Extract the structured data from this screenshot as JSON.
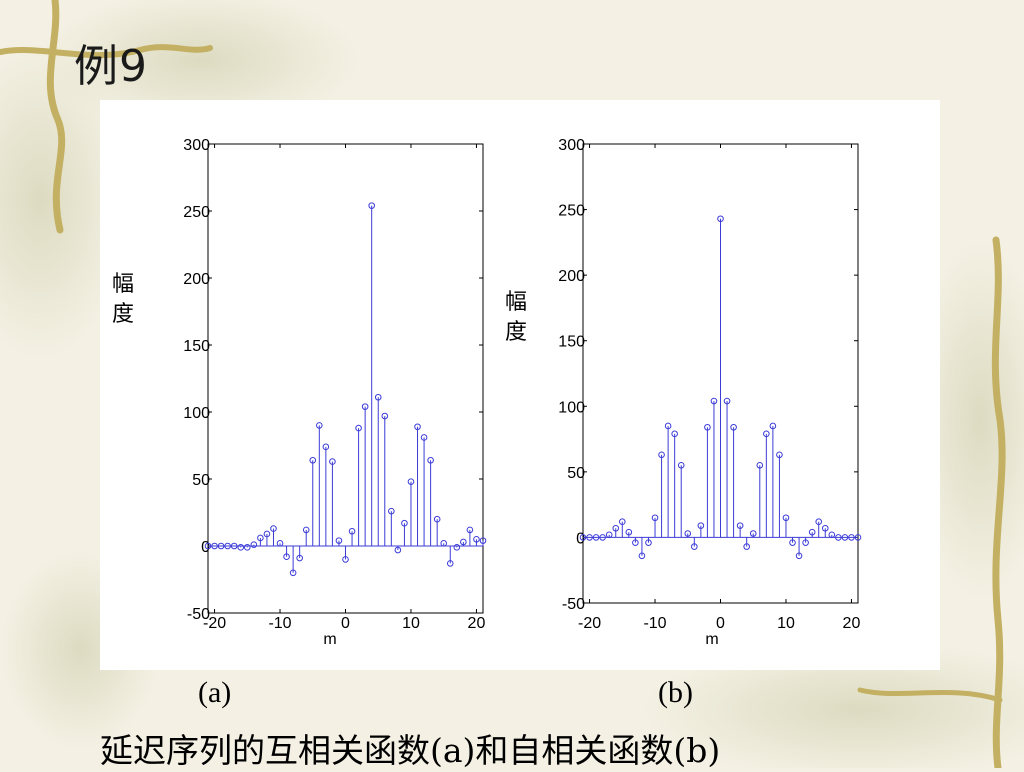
{
  "slide": {
    "title": "例9",
    "label_a": "(a)",
    "label_b": "(b)",
    "caption": "延迟序列的互相关函数(a)和自相关函数(b)"
  },
  "chart_data": [
    {
      "type": "stem",
      "ylabel": "幅度",
      "xlabel": "m",
      "xlim": [
        -21,
        21
      ],
      "ylim": [
        -50,
        300
      ],
      "xticks": [
        -20,
        -10,
        0,
        10,
        20
      ],
      "yticks": [
        -50,
        0,
        50,
        100,
        150,
        200,
        250,
        300
      ],
      "color": "#3b3bd8",
      "x": [
        -21,
        -20,
        -19,
        -18,
        -17,
        -16,
        -15,
        -14,
        -13,
        -12,
        -11,
        -10,
        -9,
        -8,
        -7,
        -6,
        -5,
        -4,
        -3,
        -2,
        -1,
        0,
        1,
        2,
        3,
        4,
        5,
        6,
        7,
        8,
        9,
        10,
        11,
        12,
        13,
        14,
        15,
        16,
        17,
        18,
        19,
        20,
        21
      ],
      "y": [
        0,
        0,
        0,
        0,
        0,
        -1,
        -1,
        1,
        6,
        9,
        13,
        2,
        -8,
        -20,
        -9,
        12,
        64,
        90,
        74,
        63,
        4,
        -10,
        11,
        88,
        104,
        254,
        111,
        97,
        26,
        -3,
        17,
        48,
        89,
        81,
        64,
        20,
        2,
        -13,
        -1,
        3,
        12,
        5,
        4
      ]
    },
    {
      "type": "stem",
      "ylabel": "幅度",
      "xlabel": "m",
      "xlim": [
        -21,
        21
      ],
      "ylim": [
        -50,
        300
      ],
      "xticks": [
        -20,
        -10,
        0,
        10,
        20
      ],
      "yticks": [
        -50,
        0,
        50,
        100,
        150,
        200,
        250,
        300
      ],
      "color": "#3b3bd8",
      "x": [
        -21,
        -20,
        -19,
        -18,
        -17,
        -16,
        -15,
        -14,
        -13,
        -12,
        -11,
        -10,
        -9,
        -8,
        -7,
        -6,
        -5,
        -4,
        -3,
        -2,
        -1,
        0,
        1,
        2,
        3,
        4,
        5,
        6,
        7,
        8,
        9,
        10,
        11,
        12,
        13,
        14,
        15,
        16,
        17,
        18,
        19,
        20,
        21
      ],
      "y": [
        0,
        0,
        0,
        0,
        2,
        7,
        12,
        4,
        -4,
        -14,
        -4,
        15,
        63,
        85,
        79,
        55,
        3,
        -7,
        9,
        84,
        104,
        243,
        104,
        84,
        9,
        -7,
        3,
        55,
        79,
        85,
        63,
        15,
        -4,
        -14,
        -4,
        4,
        12,
        7,
        2,
        0,
        0,
        0,
        0
      ]
    }
  ]
}
